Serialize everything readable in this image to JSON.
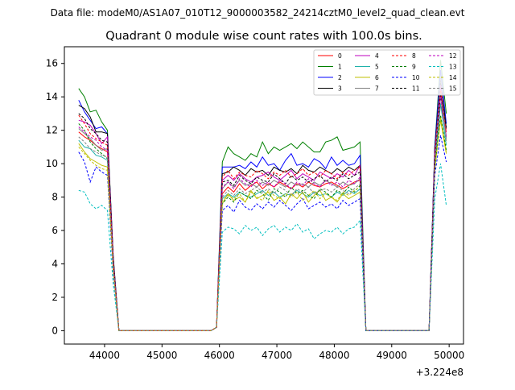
{
  "figure": {
    "suptitle": "Data file: modeM0/AS1A07_010T12_9000003582_24214cztM0_level2_quad_clean.evt"
  },
  "chart_data": {
    "type": "line",
    "title": "Quadrant 0 module wise count rates with 100.0s bins.",
    "xlabel": "",
    "ylabel": "",
    "x_offset_label": "+3.224e8",
    "xlim": [
      43300,
      50250
    ],
    "ylim": [
      -0.8,
      17
    ],
    "xticks": [
      44000,
      45000,
      46000,
      47000,
      48000,
      49000,
      50000
    ],
    "yticks": [
      0,
      2,
      4,
      6,
      8,
      10,
      12,
      14,
      16
    ],
    "grid": false,
    "legend": {
      "placement": "top-right",
      "columns": 4
    },
    "x": [
      43550,
      43650,
      43750,
      43850,
      43950,
      44050,
      44150,
      44250,
      45850,
      45950,
      46050,
      46150,
      46250,
      46350,
      46450,
      46550,
      46650,
      46750,
      46850,
      46950,
      47050,
      47150,
      47250,
      47350,
      47450,
      47550,
      47650,
      47750,
      47850,
      47950,
      48050,
      48150,
      48250,
      48350,
      48450,
      48550,
      48650,
      49650,
      49750,
      49850,
      49950
    ],
    "series": [
      {
        "name": "0",
        "color": "#ff0000",
        "dash": false,
        "values": [
          11.9,
          11.6,
          11.4,
          11.1,
          10.9,
          10.7,
          4.0,
          0,
          0,
          0.2,
          8.2,
          8.6,
          8.3,
          8.8,
          8.4,
          8.7,
          8.9,
          8.5,
          8.8,
          8.6,
          8.9,
          8.7,
          8.5,
          8.8,
          8.6,
          8.9,
          8.7,
          8.6,
          8.8,
          8.9,
          8.7,
          8.5,
          8.7,
          8.9,
          9.0,
          0,
          0,
          0,
          10.1,
          13.6,
          11.9
        ]
      },
      {
        "name": "1",
        "color": "#008000",
        "dash": false,
        "values": [
          14.5,
          14.0,
          13.1,
          13.2,
          12.5,
          12.0,
          4.5,
          0,
          0,
          0.2,
          10.1,
          11.0,
          10.6,
          10.4,
          10.2,
          10.6,
          10.4,
          11.3,
          10.6,
          11.0,
          10.8,
          11.0,
          11.2,
          10.9,
          11.3,
          11.0,
          10.7,
          10.7,
          11.3,
          11.4,
          11.6,
          10.8,
          10.9,
          11.0,
          11.3,
          0,
          0,
          0,
          11.0,
          16.2,
          13.0
        ]
      },
      {
        "name": "2",
        "color": "#0000ff",
        "dash": false,
        "values": [
          13.8,
          13.1,
          12.6,
          12.1,
          12.2,
          11.8,
          4.4,
          0,
          0,
          0.2,
          9.8,
          9.8,
          9.8,
          9.9,
          9.7,
          10.1,
          9.8,
          10.4,
          9.9,
          10.0,
          9.6,
          10.2,
          10.6,
          9.9,
          10.0,
          9.8,
          10.3,
          10.1,
          9.7,
          10.4,
          9.9,
          10.2,
          9.9,
          10.0,
          10.5,
          0,
          0,
          0,
          11.0,
          15.6,
          12.4
        ]
      },
      {
        "name": "3",
        "color": "#000000",
        "dash": false,
        "values": [
          13.5,
          13.3,
          12.8,
          11.9,
          11.9,
          11.8,
          4.4,
          0,
          0,
          0.2,
          9.4,
          9.5,
          9.8,
          9.6,
          9.3,
          9.7,
          9.5,
          9.6,
          9.3,
          9.8,
          9.6,
          9.5,
          9.7,
          9.4,
          9.9,
          9.6,
          9.5,
          9.8,
          9.6,
          9.4,
          9.7,
          9.5,
          9.8,
          9.6,
          9.9,
          0,
          0,
          0,
          10.8,
          15.0,
          12.1
        ]
      },
      {
        "name": "4",
        "color": "#bf00bf",
        "dash": false,
        "values": [
          12.6,
          12.5,
          12.3,
          11.8,
          11.2,
          11.6,
          4.3,
          0,
          0,
          0.2,
          9.0,
          9.3,
          9.0,
          9.4,
          9.1,
          8.9,
          9.2,
          9.3,
          9.5,
          9.2,
          9.0,
          9.3,
          9.6,
          9.1,
          9.4,
          9.2,
          9.0,
          9.5,
          9.3,
          9.1,
          9.4,
          9.2,
          9.6,
          9.3,
          9.9,
          0,
          0,
          0,
          10.6,
          14.7,
          11.6
        ]
      },
      {
        "name": "5",
        "color": "#20b2aa",
        "dash": false,
        "values": [
          11.4,
          11.0,
          10.9,
          10.5,
          10.4,
          10.2,
          3.8,
          0,
          0,
          0.2,
          7.9,
          8.2,
          8.0,
          8.3,
          8.1,
          8.0,
          8.2,
          8.4,
          8.1,
          8.3,
          8.0,
          8.2,
          8.1,
          8.4,
          8.2,
          8.0,
          8.3,
          8.1,
          8.2,
          8.0,
          8.3,
          8.1,
          8.4,
          8.2,
          8.5,
          0,
          0,
          0,
          10.0,
          13.6,
          11.1
        ]
      },
      {
        "name": "6",
        "color": "#bfbf00",
        "dash": false,
        "values": [
          11.2,
          10.7,
          10.3,
          10.1,
          9.9,
          9.8,
          3.7,
          0,
          0,
          0.2,
          7.6,
          8.2,
          7.8,
          8.0,
          7.7,
          8.4,
          7.9,
          8.1,
          8.3,
          7.8,
          8.0,
          7.6,
          8.2,
          7.9,
          8.3,
          7.7,
          8.1,
          8.4,
          7.8,
          8.0,
          7.7,
          8.2,
          7.9,
          8.1,
          8.3,
          0,
          0,
          0,
          9.8,
          12.6,
          10.6
        ]
      },
      {
        "name": "7",
        "color": "#808080",
        "dash": false,
        "values": [
          12.1,
          11.8,
          11.5,
          11.1,
          10.8,
          10.9,
          4.0,
          0,
          0,
          0.2,
          8.5,
          8.9,
          8.6,
          9.0,
          8.7,
          8.8,
          8.6,
          8.9,
          8.7,
          9.0,
          8.8,
          8.6,
          8.9,
          8.7,
          8.8,
          8.6,
          8.9,
          8.7,
          9.0,
          8.8,
          8.6,
          8.9,
          8.7,
          8.8,
          9.1,
          0,
          0,
          0,
          10.3,
          14.2,
          11.5
        ]
      },
      {
        "name": "8",
        "color": "#ff0000",
        "dash": true,
        "values": [
          12.9,
          12.4,
          11.8,
          11.5,
          11.3,
          11.1,
          4.1,
          0,
          0,
          0.2,
          9.2,
          9.6,
          9.1,
          9.5,
          9.3,
          9.2,
          9.6,
          9.4,
          9.1,
          9.5,
          9.3,
          9.6,
          9.2,
          9.4,
          9.7,
          9.3,
          9.5,
          9.2,
          9.6,
          9.4,
          9.1,
          9.5,
          9.3,
          9.6,
          9.8,
          0,
          0,
          0,
          10.5,
          14.4,
          11.9
        ]
      },
      {
        "name": "9",
        "color": "#008000",
        "dash": true,
        "values": [
          12.4,
          12.0,
          11.3,
          10.9,
          10.6,
          10.3,
          3.9,
          0,
          0,
          0.2,
          7.6,
          8.0,
          7.7,
          8.3,
          8.1,
          7.9,
          8.4,
          8.2,
          7.8,
          8.5,
          8.3,
          8.0,
          8.6,
          8.2,
          8.4,
          8.1,
          7.9,
          8.5,
          8.3,
          8.0,
          8.4,
          8.2,
          8.6,
          8.3,
          8.7,
          0,
          0,
          0,
          9.7,
          12.9,
          10.8
        ]
      },
      {
        "name": "10",
        "color": "#0000ff",
        "dash": true,
        "values": [
          10.7,
          10.1,
          8.9,
          9.8,
          9.5,
          9.3,
          3.4,
          0,
          0,
          0.2,
          7.2,
          7.5,
          7.1,
          7.8,
          7.4,
          7.2,
          7.6,
          7.3,
          7.7,
          7.4,
          7.8,
          7.5,
          7.2,
          7.6,
          7.9,
          7.3,
          7.5,
          7.7,
          7.4,
          7.6,
          7.3,
          7.8,
          7.5,
          7.7,
          7.9,
          0,
          0,
          0,
          9.3,
          11.7,
          10.1
        ]
      },
      {
        "name": "11",
        "color": "#000000",
        "dash": true,
        "values": [
          13.0,
          12.7,
          12.1,
          11.8,
          11.4,
          11.3,
          4.2,
          0,
          0,
          0.2,
          8.9,
          9.0,
          8.7,
          9.3,
          9.0,
          8.8,
          9.2,
          9.0,
          8.9,
          9.4,
          9.1,
          8.8,
          9.3,
          9.0,
          9.2,
          8.9,
          9.1,
          9.3,
          8.9,
          9.2,
          9.0,
          9.4,
          9.1,
          9.3,
          9.5,
          0,
          0,
          0,
          10.2,
          14.1,
          12.2
        ]
      },
      {
        "name": "12",
        "color": "#bf00bf",
        "dash": true,
        "values": [
          12.2,
          11.9,
          11.6,
          11.4,
          11.0,
          10.8,
          4.0,
          0,
          0,
          0.2,
          8.6,
          8.9,
          8.5,
          9.1,
          8.8,
          8.6,
          9.0,
          8.7,
          8.9,
          8.6,
          9.0,
          8.8,
          8.5,
          8.9,
          8.7,
          9.1,
          8.8,
          8.6,
          9.0,
          8.7,
          8.9,
          8.6,
          9.0,
          8.8,
          9.2,
          0,
          0,
          0,
          10.4,
          14.0,
          11.6
        ]
      },
      {
        "name": "13",
        "color": "#00bfbf",
        "dash": true,
        "values": [
          8.4,
          8.3,
          7.6,
          7.3,
          7.5,
          7.2,
          2.8,
          0,
          0,
          0.2,
          5.9,
          6.2,
          6.1,
          5.8,
          6.3,
          6.0,
          6.2,
          5.7,
          6.1,
          6.3,
          5.9,
          6.2,
          6.0,
          6.4,
          5.9,
          6.1,
          5.5,
          5.8,
          6.0,
          5.9,
          6.2,
          5.8,
          6.1,
          6.2,
          6.6,
          0,
          0,
          0,
          7.9,
          10.0,
          7.5
        ]
      },
      {
        "name": "14",
        "color": "#bfbf00",
        "dash": true,
        "values": [
          11.0,
          10.6,
          10.2,
          9.9,
          9.7,
          9.6,
          3.6,
          0,
          0,
          0.2,
          7.8,
          8.1,
          7.9,
          8.2,
          7.7,
          8.3,
          8.0,
          7.8,
          8.4,
          8.1,
          7.9,
          8.2,
          8.0,
          8.3,
          7.8,
          8.1,
          8.4,
          7.9,
          8.2,
          8.0,
          7.8,
          8.3,
          8.1,
          8.4,
          8.6,
          0,
          0,
          0,
          9.6,
          12.8,
          10.7
        ]
      },
      {
        "name": "15",
        "color": "#808080",
        "dash": true,
        "values": [
          11.6,
          11.3,
          10.9,
          10.7,
          10.5,
          10.4,
          3.9,
          0,
          0,
          0.2,
          8.0,
          8.4,
          8.1,
          8.5,
          8.2,
          8.4,
          8.6,
          8.3,
          8.5,
          8.2,
          8.6,
          8.4,
          8.1,
          8.5,
          8.3,
          8.6,
          8.2,
          8.4,
          8.5,
          8.3,
          8.6,
          8.4,
          8.2,
          8.5,
          8.8,
          0,
          0,
          0,
          10.0,
          15.2,
          11.3
        ]
      }
    ]
  }
}
